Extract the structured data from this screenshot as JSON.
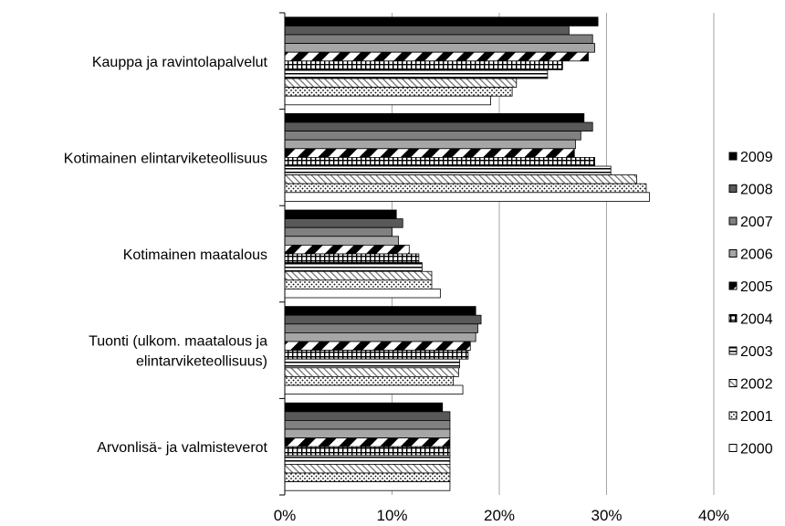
{
  "chart_data": {
    "type": "bar",
    "orientation": "horizontal",
    "categories": [
      [
        "Kauppa ja ravintolapalvelut"
      ],
      [
        "Kotimainen elintarviketeollisuus"
      ],
      [
        "Kotimainen maatalous"
      ],
      [
        "Tuonti (ulkom. maatalous ja",
        "elintarviketeollisuus)"
      ],
      [
        "Arvonlisä- ja valmisteverot"
      ]
    ],
    "series": [
      {
        "name": "2009",
        "pattern": "solid-black",
        "values": [
          29.2,
          27.9,
          10.4,
          17.8,
          14.7
        ]
      },
      {
        "name": "2008",
        "pattern": "solid-dark",
        "values": [
          26.5,
          28.7,
          11.0,
          18.3,
          15.4
        ]
      },
      {
        "name": "2007",
        "pattern": "solid-gray",
        "values": [
          28.7,
          27.6,
          10.0,
          18.0,
          15.4
        ]
      },
      {
        "name": "2006",
        "pattern": "solid-light",
        "values": [
          28.9,
          27.1,
          10.6,
          17.8,
          15.4
        ]
      },
      {
        "name": "2005",
        "pattern": "diagonal",
        "values": [
          28.3,
          27.0,
          11.6,
          17.3,
          15.4
        ]
      },
      {
        "name": "2004",
        "pattern": "grid",
        "values": [
          25.9,
          28.9,
          12.5,
          17.1,
          15.4
        ]
      },
      {
        "name": "2003",
        "pattern": "horizontal",
        "values": [
          24.5,
          30.4,
          12.8,
          16.3,
          15.4
        ]
      },
      {
        "name": "2002",
        "pattern": "hatch",
        "values": [
          21.6,
          32.8,
          13.7,
          16.2,
          15.4
        ]
      },
      {
        "name": "2001",
        "pattern": "dotted",
        "values": [
          21.2,
          33.7,
          13.7,
          15.7,
          15.4
        ]
      },
      {
        "name": "2000",
        "pattern": "white",
        "values": [
          19.2,
          34.0,
          14.5,
          16.6,
          15.4
        ]
      }
    ],
    "xlim": [
      0,
      40
    ],
    "xticks": [
      "0%",
      "10%",
      "20%",
      "30%",
      "40%"
    ],
    "grid": "vertical",
    "legend": "right",
    "colors": {
      "black": "#000000",
      "dark": "#595959",
      "gray": "#808080",
      "light": "#a6a6a6",
      "grid": "#a6a6a6",
      "white": "#ffffff"
    }
  }
}
